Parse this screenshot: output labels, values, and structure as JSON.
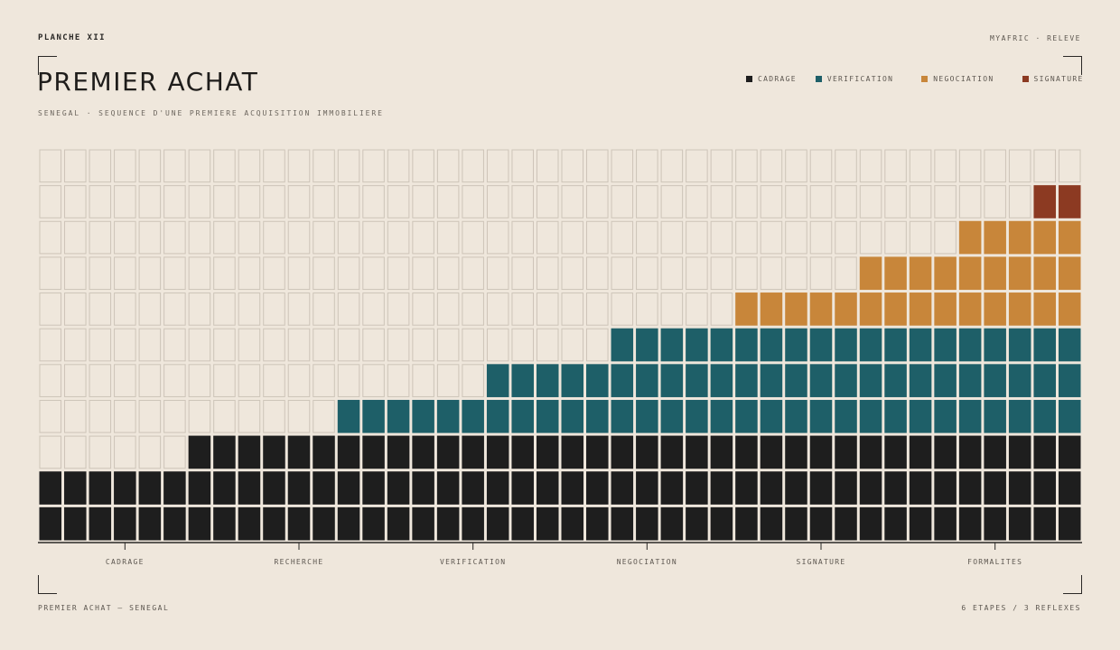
{
  "header": {
    "plate": "PLANCHE XII",
    "brand": "MYAFRIC · RELEVE",
    "title": "PREMIER ACHAT",
    "subtitle": "SENEGAL · SEQUENCE D'UNE PREMIERE ACQUISITION IMMOBILIERE"
  },
  "legend": [
    {
      "label": "CADRAGE",
      "color": "#1e1e1e"
    },
    {
      "label": "VERIFICATION",
      "color": "#1e5f68"
    },
    {
      "label": "NEGOCIATION",
      "color": "#c8863a"
    },
    {
      "label": "SIGNATURE",
      "color": "#8c3a22"
    }
  ],
  "footer": {
    "left": "PREMIER ACHAT — SENEGAL",
    "right": "6 ETAPES / 3 REFLEXES"
  },
  "chart_data": {
    "type": "bar",
    "subtype": "stacked-cell-grid",
    "columns": 42,
    "rows": 11,
    "empty_cell_color": "#efe7dc",
    "series": [
      {
        "name": "CADRAGE",
        "color": "#1e1e1e",
        "values": [
          2,
          2,
          2,
          2,
          2,
          2,
          3,
          3,
          3,
          3,
          3,
          3,
          3,
          3,
          3,
          3,
          3,
          3,
          3,
          3,
          3,
          3,
          3,
          3,
          3,
          3,
          3,
          3,
          3,
          3,
          3,
          3,
          3,
          3,
          3,
          3,
          3,
          3,
          3,
          3,
          3,
          3
        ]
      },
      {
        "name": "VERIFICATION",
        "color": "#1e5f68",
        "values": [
          0,
          0,
          0,
          0,
          0,
          0,
          0,
          0,
          0,
          0,
          0,
          0,
          1,
          1,
          1,
          1,
          1,
          1,
          2,
          2,
          2,
          2,
          2,
          3,
          3,
          3,
          3,
          3,
          3,
          3,
          3,
          3,
          3,
          3,
          3,
          3,
          3,
          3,
          3,
          3,
          3,
          3
        ]
      },
      {
        "name": "NEGOCIATION",
        "color": "#c8863a",
        "values": [
          0,
          0,
          0,
          0,
          0,
          0,
          0,
          0,
          0,
          0,
          0,
          0,
          0,
          0,
          0,
          0,
          0,
          0,
          0,
          0,
          0,
          0,
          0,
          0,
          0,
          0,
          0,
          0,
          1,
          1,
          1,
          1,
          1,
          2,
          2,
          2,
          2,
          3,
          3,
          3,
          3,
          3
        ]
      },
      {
        "name": "SIGNATURE",
        "color": "#8c3a22",
        "values": [
          0,
          0,
          0,
          0,
          0,
          0,
          0,
          0,
          0,
          0,
          0,
          0,
          0,
          0,
          0,
          0,
          0,
          0,
          0,
          0,
          0,
          0,
          0,
          0,
          0,
          0,
          0,
          0,
          0,
          0,
          0,
          0,
          0,
          0,
          0,
          0,
          0,
          0,
          0,
          0,
          1,
          1
        ]
      }
    ],
    "x_ticks": [
      {
        "label": "CADRAGE",
        "at": 3.5
      },
      {
        "label": "RECHERCHE",
        "at": 10.5
      },
      {
        "label": "VERIFICATION",
        "at": 17.5
      },
      {
        "label": "NEGOCIATION",
        "at": 24.5
      },
      {
        "label": "SIGNATURE",
        "at": 31.5
      },
      {
        "label": "FORMALITES",
        "at": 38.5
      }
    ],
    "grid": true
  }
}
